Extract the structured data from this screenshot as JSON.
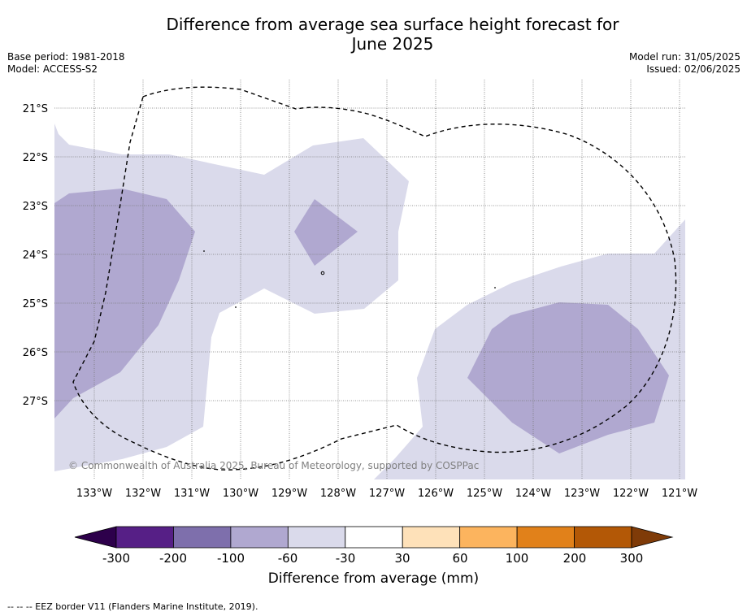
{
  "title_line1": "Difference from average sea surface height forecast for",
  "title_line2": "June 2025",
  "base_period": "Base period: 1981-2018",
  "model": "Model: ACCESS-S2",
  "model_run": "Model run: 31/05/2025",
  "issued": "Issued: 02/06/2025",
  "copyright": "© Commonwealth of Australia 2025, Bureau of Meteorology, supported by COSPPac",
  "lat_labels": [
    "21°S",
    "22°S",
    "23°S",
    "24°S",
    "25°S",
    "26°S",
    "27°S"
  ],
  "lon_labels": [
    "133°W",
    "132°W",
    "131°W",
    "130°W",
    "129°W",
    "128°W",
    "127°W",
    "126°W",
    "125°W",
    "124°W",
    "123°W",
    "122°W",
    "121°W"
  ],
  "colorbar": {
    "tick_labels": [
      "-300",
      "-200",
      "-100",
      "-60",
      "-30",
      "30",
      "60",
      "100",
      "200",
      "300"
    ],
    "colors": [
      "#561f86",
      "#7e6fac",
      "#b0a8d0",
      "#dadaeb",
      "#ffffff",
      "#fee1b9",
      "#fcb45e",
      "#e1811a",
      "#b35806"
    ],
    "under_color": "#2d004b",
    "over_color": "#7f3b08",
    "label": "Difference from average (mm)"
  },
  "footer": "--  --  -- EEZ border V11 (Flanders Marine Institute, 2019)."
}
